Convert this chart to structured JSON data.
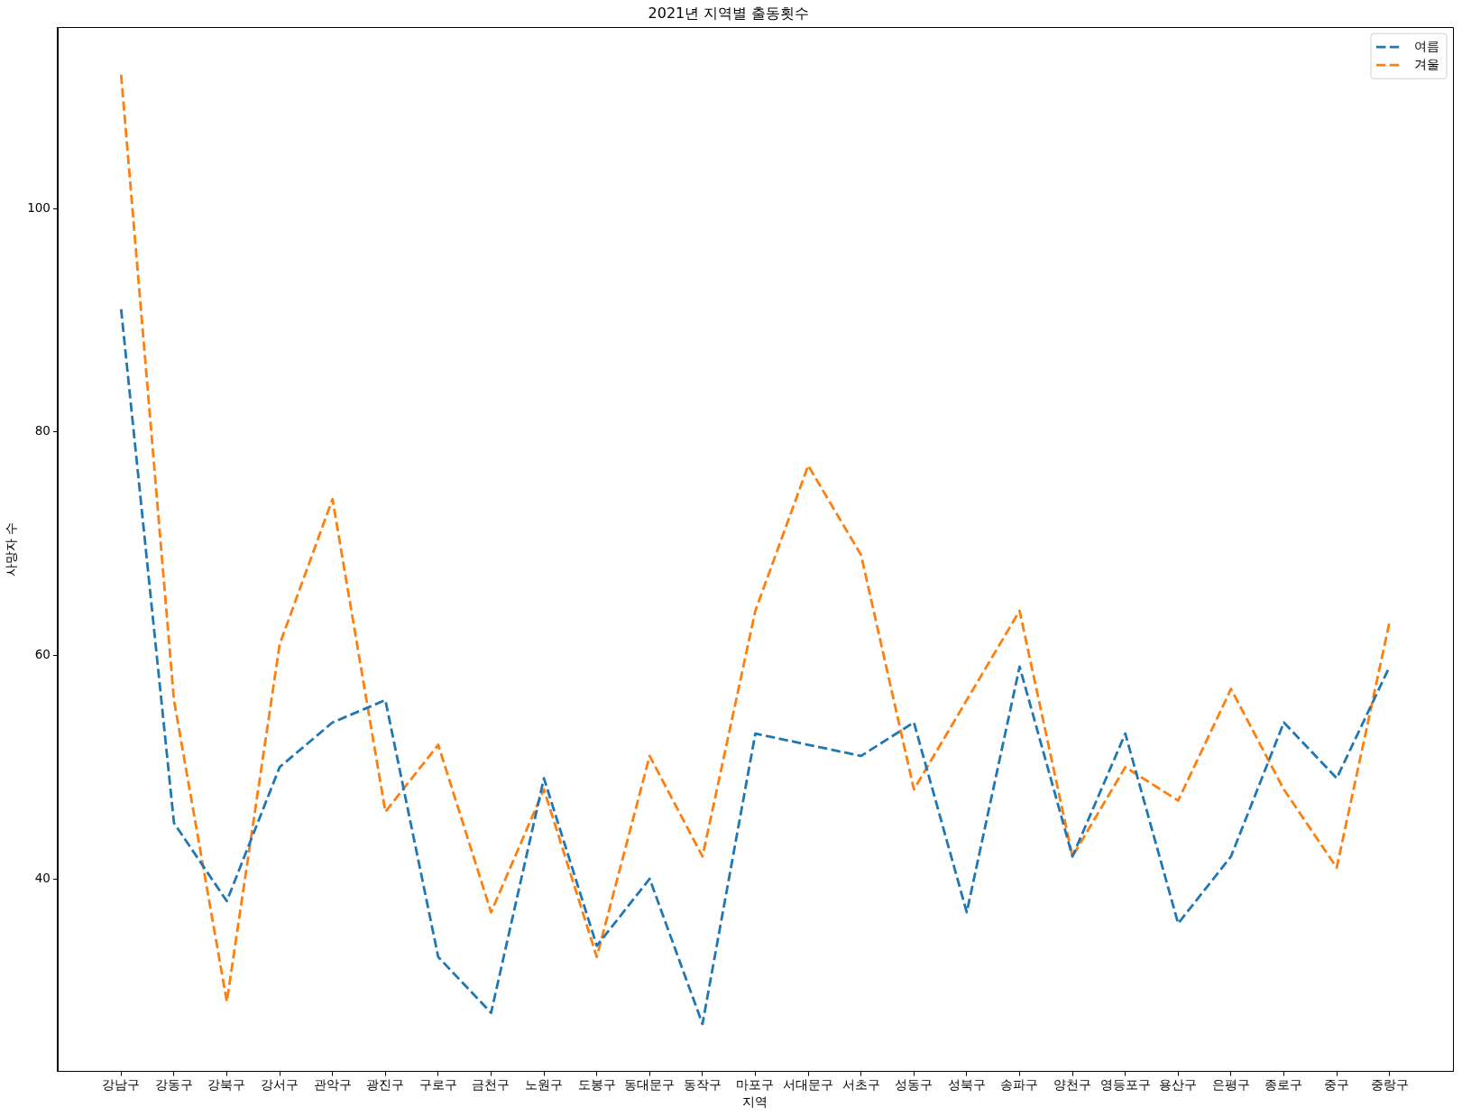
{
  "chart_data": {
    "type": "line",
    "title": "2021년 지역별 출동횟수",
    "xlabel": "지역",
    "ylabel": "사망자 수",
    "categories": [
      "강남구",
      "강동구",
      "강북구",
      "강서구",
      "관악구",
      "광진구",
      "구로구",
      "금천구",
      "노원구",
      "도봉구",
      "동대문구",
      "동작구",
      "마포구",
      "서대문구",
      "서초구",
      "성동구",
      "성북구",
      "송파구",
      "양천구",
      "영등포구",
      "용산구",
      "은평구",
      "종로구",
      "중구",
      "중랑구"
    ],
    "series": [
      {
        "name": "여름",
        "color": "#1f77b4",
        "values": [
          91,
          45,
          38,
          50,
          54,
          56,
          33,
          28,
          49,
          34,
          40,
          27,
          53,
          52,
          51,
          54,
          37,
          59,
          42,
          53,
          36,
          42,
          54,
          49,
          59
        ]
      },
      {
        "name": "겨울",
        "color": "#ff7f0e",
        "values": [
          112,
          56,
          29,
          61,
          74,
          46,
          52,
          37,
          48,
          33,
          51,
          42,
          64,
          77,
          69,
          48,
          56,
          64,
          42,
          50,
          47,
          57,
          48,
          41,
          63
        ]
      }
    ],
    "ylim": [
      22.75,
      116.25
    ],
    "yticks": [
      40,
      60,
      80,
      100
    ],
    "grid": false,
    "legend": "top right",
    "line_style": "dashed"
  }
}
